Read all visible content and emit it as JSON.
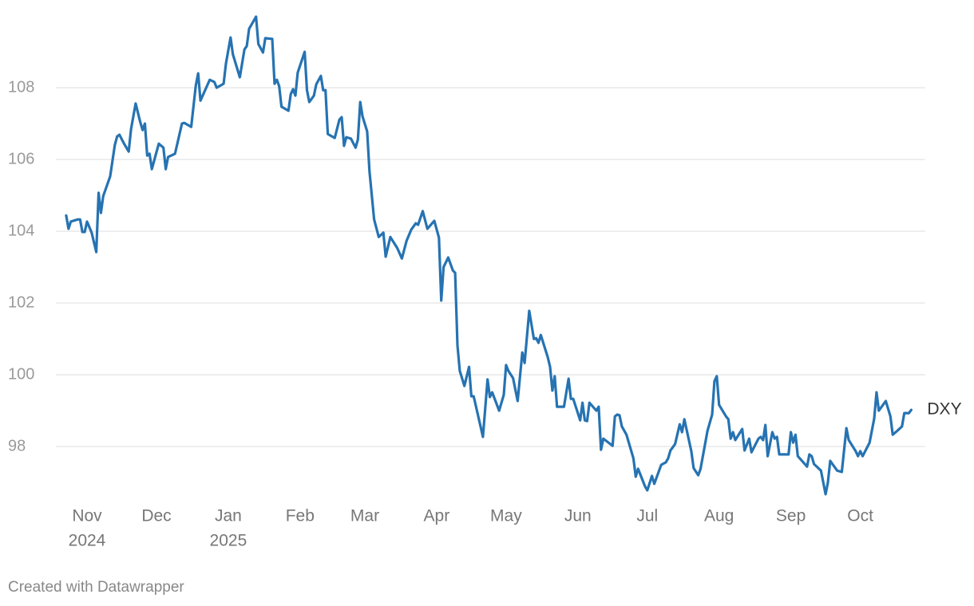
{
  "chart_data": {
    "type": "line",
    "series": [
      {
        "name": "DXY",
        "color": "#2673b2",
        "values": [
          104.44,
          104.07,
          104.27,
          104.33,
          104.33,
          103.98,
          103.98,
          104.27,
          103.96,
          103.42,
          105.07,
          104.51,
          104.98,
          105.53,
          106.4,
          106.64,
          106.69,
          106.44,
          106.22,
          106.84,
          107.56,
          107.04,
          106.82,
          107.0,
          106.11,
          106.16,
          105.73,
          106.44,
          106.33,
          105.73,
          106.07,
          106.16,
          107.0,
          107.02,
          106.91,
          108.07,
          108.4,
          107.64,
          108.22,
          108.16,
          108.0,
          108.11,
          108.67,
          109.4,
          108.93,
          108.29,
          109.07,
          109.16,
          109.64,
          109.98,
          109.22,
          108.98,
          109.38,
          109.36,
          108.11,
          108.22,
          108.04,
          107.47,
          107.36,
          107.82,
          107.96,
          107.78,
          108.42,
          109.0,
          107.93,
          107.6,
          107.78,
          108.09,
          108.33,
          107.93,
          107.93,
          106.71,
          106.6,
          107.11,
          107.18,
          106.38,
          106.62,
          106.58,
          106.33,
          106.56,
          107.6,
          107.2,
          106.78,
          105.67,
          104.33,
          103.84,
          103.96,
          103.29,
          103.84,
          103.53,
          103.24,
          103.73,
          104.04,
          104.22,
          104.18,
          104.56,
          104.07,
          104.29,
          103.82,
          102.07,
          103.0,
          103.27,
          102.91,
          102.84,
          100.82,
          100.11,
          99.69,
          100.22,
          99.4,
          99.4,
          98.27,
          99.87,
          99.38,
          99.51,
          99.0,
          99.44,
          100.27,
          100.11,
          99.91,
          99.27,
          100.62,
          100.33,
          101.78,
          101.0,
          101.02,
          100.89,
          101.11,
          100.49,
          100.22,
          99.56,
          99.96,
          99.11,
          99.11,
          99.89,
          99.33,
          99.33,
          98.73,
          99.22,
          98.73,
          98.71,
          99.22,
          99.0,
          99.11,
          97.91,
          98.22,
          98.02,
          98.84,
          98.89,
          98.87,
          98.56,
          98.33,
          97.89,
          97.67,
          97.16,
          97.38,
          96.89,
          96.78,
          97.18,
          96.96,
          97.49,
          97.56,
          97.67,
          97.89,
          98.07,
          98.62,
          98.4,
          98.76,
          97.87,
          97.4,
          97.2,
          97.38,
          98.44,
          98.89,
          99.82,
          99.96,
          99.16,
          98.84,
          98.76,
          98.22,
          98.4,
          98.18,
          98.49,
          97.89,
          98.22,
          97.84,
          98.22,
          98.27,
          98.18,
          98.6,
          97.73,
          98.4,
          98.22,
          98.27,
          97.78,
          97.78,
          98.4,
          98.11,
          98.33,
          97.73,
          97.44,
          97.78,
          97.73,
          97.51,
          97.33,
          96.67,
          97.0,
          97.6,
          97.33,
          97.29,
          98.51,
          98.18,
          97.87,
          97.73,
          97.87,
          97.73,
          98.11,
          98.78,
          99.51,
          99.0,
          99.27,
          98.84,
          98.33,
          98.44,
          98.56,
          98.93,
          98.93,
          99.02
        ]
      }
    ],
    "x": [
      -9,
      -8,
      -7,
      -4,
      -3,
      -2,
      -1,
      0,
      2,
      4,
      5,
      6,
      7,
      10,
      12,
      13,
      14,
      16,
      18,
      19,
      21,
      23,
      24,
      25,
      26,
      27,
      28,
      31,
      33,
      34,
      35,
      38,
      41,
      42,
      45,
      47,
      48,
      49,
      53,
      55,
      56,
      59,
      60,
      62,
      63,
      66,
      68,
      69,
      70,
      73,
      74,
      76,
      77,
      80,
      81,
      82,
      83,
      84,
      87,
      88,
      89,
      90,
      91,
      94,
      95,
      96,
      98,
      99,
      101,
      102,
      103,
      104,
      107,
      109,
      110,
      111,
      112,
      114,
      116,
      117,
      118,
      119,
      121,
      122,
      124,
      126,
      128,
      129,
      131,
      134,
      136,
      138,
      140,
      142,
      143,
      145,
      147,
      150,
      152,
      153,
      154,
      156,
      158,
      159,
      160,
      161,
      163,
      165,
      166,
      167,
      171,
      173,
      174,
      175,
      178,
      180,
      181,
      182,
      184,
      186,
      188,
      189,
      191,
      193,
      194,
      195,
      196,
      199,
      200,
      201,
      202,
      203,
      206,
      208,
      209,
      210,
      213,
      214,
      215,
      216,
      217,
      220,
      221,
      222,
      223,
      227,
      228,
      229,
      230,
      231,
      233,
      235,
      236,
      237,
      238,
      241,
      242,
      244,
      245,
      248,
      250,
      251,
      252,
      254,
      256,
      257,
      258,
      261,
      262,
      264,
      265,
      268,
      270,
      271,
      272,
      273,
      276,
      277,
      278,
      279,
      280,
      283,
      284,
      286,
      287,
      290,
      291,
      292,
      293,
      294,
      296,
      297,
      298,
      299,
      303,
      304,
      305,
      306,
      307,
      311,
      312,
      313,
      314,
      317,
      319,
      320,
      321,
      324,
      326,
      328,
      329,
      332,
      333,
      334,
      335,
      338,
      340,
      341,
      342,
      345,
      347,
      348,
      350,
      352,
      353,
      355,
      356
    ],
    "xlim": [
      -9,
      362
    ],
    "xticks": [
      {
        "value": 0,
        "label": "Nov"
      },
      {
        "value": 30,
        "label": "Dec"
      },
      {
        "value": 61,
        "label": "Jan"
      },
      {
        "value": 92,
        "label": "Feb"
      },
      {
        "value": 120,
        "label": "Mar"
      },
      {
        "value": 151,
        "label": "Apr"
      },
      {
        "value": 181,
        "label": "May"
      },
      {
        "value": 212,
        "label": "Jun"
      },
      {
        "value": 242,
        "label": "Jul"
      },
      {
        "value": 273,
        "label": "Aug"
      },
      {
        "value": 304,
        "label": "Sep"
      },
      {
        "value": 334,
        "label": "Oct"
      }
    ],
    "xtick_years": [
      {
        "value": 0,
        "label": "2024"
      },
      {
        "value": 61,
        "label": "2025"
      }
    ],
    "ylim": [
      96.5,
      110
    ],
    "yticks": [
      98,
      100,
      102,
      104,
      106,
      108
    ],
    "grid": true,
    "credit": "Created with Datawrapper"
  }
}
